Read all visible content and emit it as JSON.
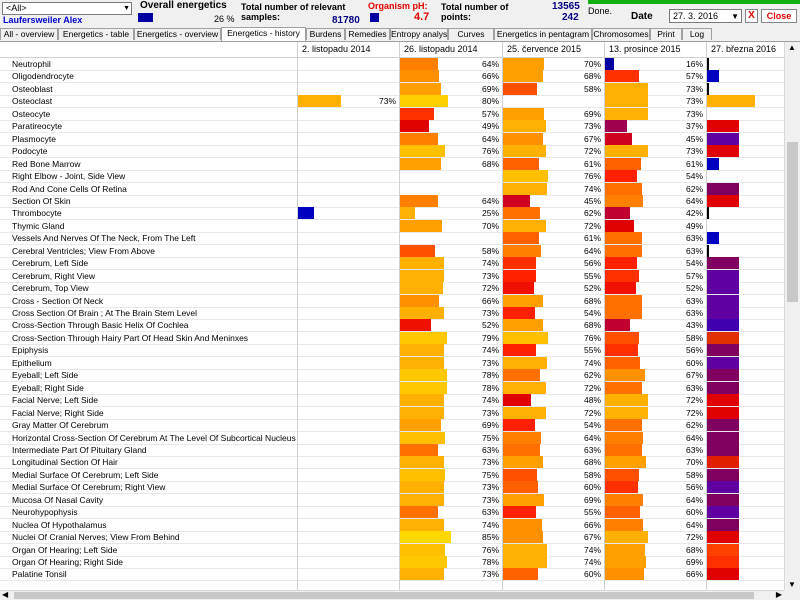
{
  "header": {
    "filter_value": "<All>",
    "user_name": "Laufersweiler Alex",
    "overall_label": "Overall energetics",
    "overall_value": "26 %",
    "relevant_label": "Total number of relevant samples:",
    "relevant_value": "81780",
    "ph_label": "Organism pH:",
    "ph_value": "4.7",
    "points_label": "Total number of points:",
    "points_value1": "13565",
    "points_value2": "242",
    "done_label": "Done.",
    "date_label": "Date",
    "date_value": "27. 3. 2016",
    "x_label": "X",
    "close_label": "Close"
  },
  "tabs": [
    "All - overview",
    "Energetics - table",
    "Energetics - overview",
    "Energetics - history",
    "Burdens",
    "Remedies",
    "Entropy analysis",
    "Curves",
    "Energetics in pentagram",
    "Chromosomes",
    "Print",
    "Log"
  ],
  "active_tab": "Energetics - history",
  "columns": [
    "2. listopadu 2014",
    "26. listopadu 2014",
    "25. července 2015",
    "13. prosince 2015",
    "27. března 2016"
  ],
  "rows": [
    {
      "name": "Neutrophil",
      "c": [
        null,
        {
          "v": "64%",
          "col": "#ff8000"
        },
        {
          "v": "70%",
          "col": "#ffa000"
        },
        {
          "v": "16%",
          "col": "#0000a0"
        },
        {
          "v": "",
          "col": "#000000"
        }
      ]
    },
    {
      "name": "Oligodendrocyte",
      "c": [
        null,
        {
          "v": "66%",
          "col": "#ff9000"
        },
        {
          "v": "68%",
          "col": "#ffa000"
        },
        {
          "v": "57%",
          "col": "#ff3000"
        },
        {
          "v": "",
          "col": "#0000c0"
        }
      ]
    },
    {
      "name": "Osteoblast",
      "c": [
        null,
        {
          "v": "69%",
          "col": "#ffa000"
        },
        {
          "v": "58%",
          "col": "#ff5000"
        },
        {
          "v": "73%",
          "col": "#ffb000"
        },
        {
          "v": "",
          "col": "#000000"
        }
      ]
    },
    {
      "name": "Osteoclast",
      "c": [
        {
          "v": "73%",
          "col": "#ffb000"
        },
        {
          "v": "80%",
          "col": "#ffd000"
        },
        null,
        {
          "v": "73%",
          "col": "#ffb000"
        },
        {
          "v": "",
          "col": "#ffb000"
        }
      ]
    },
    {
      "name": "Osteocyte",
      "c": [
        null,
        {
          "v": "57%",
          "col": "#ff3000"
        },
        {
          "v": "69%",
          "col": "#ffa000"
        },
        {
          "v": "73%",
          "col": "#ffb000"
        },
        null
      ]
    },
    {
      "name": "Paratireocyte",
      "c": [
        null,
        {
          "v": "49%",
          "col": "#e00000"
        },
        {
          "v": "73%",
          "col": "#ffb000"
        },
        {
          "v": "37%",
          "col": "#a00050"
        },
        {
          "v": "",
          "col": "#e00000"
        }
      ]
    },
    {
      "name": "Plasmocyte",
      "c": [
        null,
        {
          "v": "64%",
          "col": "#ff8000"
        },
        {
          "v": "67%",
          "col": "#ff9000"
        },
        {
          "v": "45%",
          "col": "#d00020"
        },
        {
          "v": "",
          "col": "#6000a0"
        }
      ]
    },
    {
      "name": "Podocyte",
      "c": [
        null,
        {
          "v": "76%",
          "col": "#ffc000"
        },
        {
          "v": "72%",
          "col": "#ffb000"
        },
        {
          "v": "73%",
          "col": "#ffb000"
        },
        {
          "v": "",
          "col": "#e00000"
        }
      ]
    },
    {
      "name": "Red Bone Marrow",
      "c": [
        null,
        {
          "v": "68%",
          "col": "#ffa000"
        },
        {
          "v": "61%",
          "col": "#ff6000"
        },
        {
          "v": "61%",
          "col": "#ff6000"
        },
        {
          "v": "",
          "col": "#0000c0"
        }
      ]
    },
    {
      "name": "Right Elbow - Joint, Side View",
      "c": [
        null,
        null,
        {
          "v": "76%",
          "col": "#ffc000"
        },
        {
          "v": "54%",
          "col": "#ff2000"
        },
        null
      ]
    },
    {
      "name": "Rod And Cone Cells Of Retina",
      "c": [
        null,
        null,
        {
          "v": "74%",
          "col": "#ffb000"
        },
        {
          "v": "62%",
          "col": "#ff7000"
        },
        {
          "v": "",
          "col": "#800060"
        }
      ]
    },
    {
      "name": "Section Of Skin",
      "c": [
        null,
        {
          "v": "64%",
          "col": "#ff8000"
        },
        {
          "v": "45%",
          "col": "#d00020"
        },
        {
          "v": "64%",
          "col": "#ff8000"
        },
        {
          "v": "",
          "col": "#e00000"
        }
      ]
    },
    {
      "name": "Thrombocyte",
      "c": [
        {
          "v": "",
          "col": "#0000c0"
        },
        {
          "v": "25%",
          "col": "#ffb000"
        },
        {
          "v": "62%",
          "col": "#ff7000"
        },
        {
          "v": "42%",
          "col": "#c00030"
        },
        {
          "v": "",
          "col": "#000000"
        }
      ]
    },
    {
      "name": "Thymic Gland",
      "c": [
        null,
        {
          "v": "70%",
          "col": "#ffa000"
        },
        {
          "v": "72%",
          "col": "#ffb000"
        },
        {
          "v": "49%",
          "col": "#e00000"
        },
        null
      ]
    },
    {
      "name": "Vessels And Nerves Of The Neck, From The Left",
      "c": [
        null,
        null,
        {
          "v": "61%",
          "col": "#ff6000"
        },
        {
          "v": "63%",
          "col": "#ff7000"
        },
        {
          "v": "",
          "col": "#0000c0"
        }
      ]
    },
    {
      "name": "Cerebral Ventricles; View From Above",
      "c": [
        null,
        {
          "v": "58%",
          "col": "#ff5000"
        },
        {
          "v": "64%",
          "col": "#ff8000"
        },
        {
          "v": "63%",
          "col": "#ff7000"
        },
        {
          "v": "",
          "col": "#000000"
        }
      ]
    },
    {
      "name": "Cerebrum, Left Side",
      "c": [
        null,
        {
          "v": "74%",
          "col": "#ffb000"
        },
        {
          "v": "56%",
          "col": "#ff3000"
        },
        {
          "v": "54%",
          "col": "#ff2000"
        },
        {
          "v": "",
          "col": "#800060"
        }
      ]
    },
    {
      "name": "Cerebrum, Right View",
      "c": [
        null,
        {
          "v": "73%",
          "col": "#ffb000"
        },
        {
          "v": "55%",
          "col": "#ff2000"
        },
        {
          "v": "57%",
          "col": "#ff3000"
        },
        {
          "v": "",
          "col": "#6000a0"
        }
      ]
    },
    {
      "name": "Cerebrum, Top View",
      "c": [
        null,
        {
          "v": "72%",
          "col": "#ffb000"
        },
        {
          "v": "52%",
          "col": "#f01000"
        },
        {
          "v": "52%",
          "col": "#f01000"
        },
        {
          "v": "",
          "col": "#6000a0"
        }
      ]
    },
    {
      "name": "Cross - Section Of Neck",
      "c": [
        null,
        {
          "v": "66%",
          "col": "#ff9000"
        },
        {
          "v": "68%",
          "col": "#ffa000"
        },
        {
          "v": "63%",
          "col": "#ff7000"
        },
        {
          "v": "",
          "col": "#6000a0"
        }
      ]
    },
    {
      "name": "Cross Section Of Brain ; At The Brain Stem Level",
      "c": [
        null,
        {
          "v": "73%",
          "col": "#ffb000"
        },
        {
          "v": "54%",
          "col": "#ff2000"
        },
        {
          "v": "63%",
          "col": "#ff7000"
        },
        {
          "v": "",
          "col": "#6000a0"
        }
      ]
    },
    {
      "name": "Cross-Section Through Basic Helix Of Cochlea",
      "c": [
        null,
        {
          "v": "52%",
          "col": "#f01000"
        },
        {
          "v": "68%",
          "col": "#ffa000"
        },
        {
          "v": "43%",
          "col": "#c00030"
        },
        {
          "v": "",
          "col": "#4000b0"
        }
      ]
    },
    {
      "name": "Cross-Section Through Hairy Part Of Head Skin And Meninxes",
      "c": [
        null,
        {
          "v": "79%",
          "col": "#ffc800"
        },
        {
          "v": "76%",
          "col": "#ffc000"
        },
        {
          "v": "58%",
          "col": "#ff5000"
        },
        {
          "v": "",
          "col": "#e03000"
        }
      ]
    },
    {
      "name": "Epiphysis",
      "c": [
        null,
        {
          "v": "74%",
          "col": "#ffb000"
        },
        {
          "v": "55%",
          "col": "#ff2000"
        },
        {
          "v": "56%",
          "col": "#ff3000"
        },
        {
          "v": "",
          "col": "#800060"
        }
      ]
    },
    {
      "name": "Epithelium",
      "c": [
        null,
        {
          "v": "73%",
          "col": "#ffb000"
        },
        {
          "v": "74%",
          "col": "#ffb000"
        },
        {
          "v": "60%",
          "col": "#ff6000"
        },
        {
          "v": "",
          "col": "#6000a0"
        }
      ]
    },
    {
      "name": "Eyeball; Left Side",
      "c": [
        null,
        {
          "v": "78%",
          "col": "#ffc800"
        },
        {
          "v": "62%",
          "col": "#ff7000"
        },
        {
          "v": "67%",
          "col": "#ff9000"
        },
        {
          "v": "",
          "col": "#800060"
        }
      ]
    },
    {
      "name": "Eyeball; Right Side",
      "c": [
        null,
        {
          "v": "78%",
          "col": "#ffc800"
        },
        {
          "v": "72%",
          "col": "#ffb000"
        },
        {
          "v": "63%",
          "col": "#ff7000"
        },
        {
          "v": "",
          "col": "#800060"
        }
      ]
    },
    {
      "name": "Facial Nerve; Left Side",
      "c": [
        null,
        {
          "v": "74%",
          "col": "#ffb000"
        },
        {
          "v": "48%",
          "col": "#e00000"
        },
        {
          "v": "72%",
          "col": "#ffb000"
        },
        {
          "v": "",
          "col": "#e00000"
        }
      ]
    },
    {
      "name": "Facial Nerve; Right Side",
      "c": [
        null,
        {
          "v": "73%",
          "col": "#ffb000"
        },
        {
          "v": "72%",
          "col": "#ffb000"
        },
        {
          "v": "72%",
          "col": "#ffb000"
        },
        {
          "v": "",
          "col": "#e00000"
        }
      ]
    },
    {
      "name": "Gray Matter Of Cerebrum",
      "c": [
        null,
        {
          "v": "69%",
          "col": "#ffa000"
        },
        {
          "v": "54%",
          "col": "#ff2000"
        },
        {
          "v": "62%",
          "col": "#ff7000"
        },
        {
          "v": "",
          "col": "#800060"
        }
      ]
    },
    {
      "name": "Horizontal Cross-Section Of Cerebrum At The Level Of Subcortical Nucleus",
      "c": [
        null,
        {
          "v": "75%",
          "col": "#ffc000"
        },
        {
          "v": "64%",
          "col": "#ff8000"
        },
        {
          "v": "64%",
          "col": "#ff8000"
        },
        {
          "v": "",
          "col": "#800060"
        }
      ]
    },
    {
      "name": "Intermediate Part Of Pituitary Gland",
      "c": [
        null,
        {
          "v": "63%",
          "col": "#ff7000"
        },
        {
          "v": "63%",
          "col": "#ff7000"
        },
        {
          "v": "63%",
          "col": "#ff7000"
        },
        {
          "v": "",
          "col": "#800060"
        }
      ]
    },
    {
      "name": "Longitudinal Section Of Hair",
      "c": [
        null,
        {
          "v": "73%",
          "col": "#ffb000"
        },
        {
          "v": "68%",
          "col": "#ffa000"
        },
        {
          "v": "70%",
          "col": "#ffa000"
        },
        {
          "v": "",
          "col": "#e02000"
        }
      ]
    },
    {
      "name": "Medial Surface Of Cerebrum; Left Side",
      "c": [
        null,
        {
          "v": "75%",
          "col": "#ffc000"
        },
        {
          "v": "58%",
          "col": "#ff5000"
        },
        {
          "v": "58%",
          "col": "#ff5000"
        },
        {
          "v": "",
          "col": "#800060"
        }
      ]
    },
    {
      "name": "Medial Surface Of Cerebrum; Right View",
      "c": [
        null,
        {
          "v": "73%",
          "col": "#ffb000"
        },
        {
          "v": "60%",
          "col": "#ff6000"
        },
        {
          "v": "56%",
          "col": "#ff3000"
        },
        {
          "v": "",
          "col": "#6000a0"
        }
      ]
    },
    {
      "name": "Mucosa Of Nasal Cavity",
      "c": [
        null,
        {
          "v": "73%",
          "col": "#ffb000"
        },
        {
          "v": "69%",
          "col": "#ffa000"
        },
        {
          "v": "64%",
          "col": "#ff8000"
        },
        {
          "v": "",
          "col": "#800060"
        }
      ]
    },
    {
      "name": "Neurohypophysis",
      "c": [
        null,
        {
          "v": "63%",
          "col": "#ff7000"
        },
        {
          "v": "55%",
          "col": "#ff2000"
        },
        {
          "v": "60%",
          "col": "#ff6000"
        },
        {
          "v": "",
          "col": "#6000a0"
        }
      ]
    },
    {
      "name": "Nuclea Of Hypothalamus",
      "c": [
        null,
        {
          "v": "74%",
          "col": "#ffb000"
        },
        {
          "v": "66%",
          "col": "#ff9000"
        },
        {
          "v": "64%",
          "col": "#ff8000"
        },
        {
          "v": "",
          "col": "#800060"
        }
      ]
    },
    {
      "name": "Nuclei Of Cranial Nerves; View From Behind",
      "c": [
        null,
        {
          "v": "85%",
          "col": "#ffd800"
        },
        {
          "v": "67%",
          "col": "#ff9000"
        },
        {
          "v": "72%",
          "col": "#ffb000"
        },
        {
          "v": "",
          "col": "#e00000"
        }
      ]
    },
    {
      "name": "Organ Of Hearing; Left Side",
      "c": [
        null,
        {
          "v": "76%",
          "col": "#ffc000"
        },
        {
          "v": "74%",
          "col": "#ffb000"
        },
        {
          "v": "68%",
          "col": "#ffa000"
        },
        {
          "v": "",
          "col": "#ff4000"
        }
      ]
    },
    {
      "name": "Organ Of Hearing; Right Side",
      "c": [
        null,
        {
          "v": "78%",
          "col": "#ffc800"
        },
        {
          "v": "74%",
          "col": "#ffb000"
        },
        {
          "v": "69%",
          "col": "#ffa000"
        },
        {
          "v": "",
          "col": "#ff3000"
        }
      ]
    },
    {
      "name": "Palatine Tonsil",
      "c": [
        null,
        {
          "v": "73%",
          "col": "#ffb000"
        },
        {
          "v": "60%",
          "col": "#ff6000"
        },
        {
          "v": "66%",
          "col": "#ff9000"
        },
        {
          "v": "",
          "col": "#e00000"
        }
      ]
    }
  ]
}
